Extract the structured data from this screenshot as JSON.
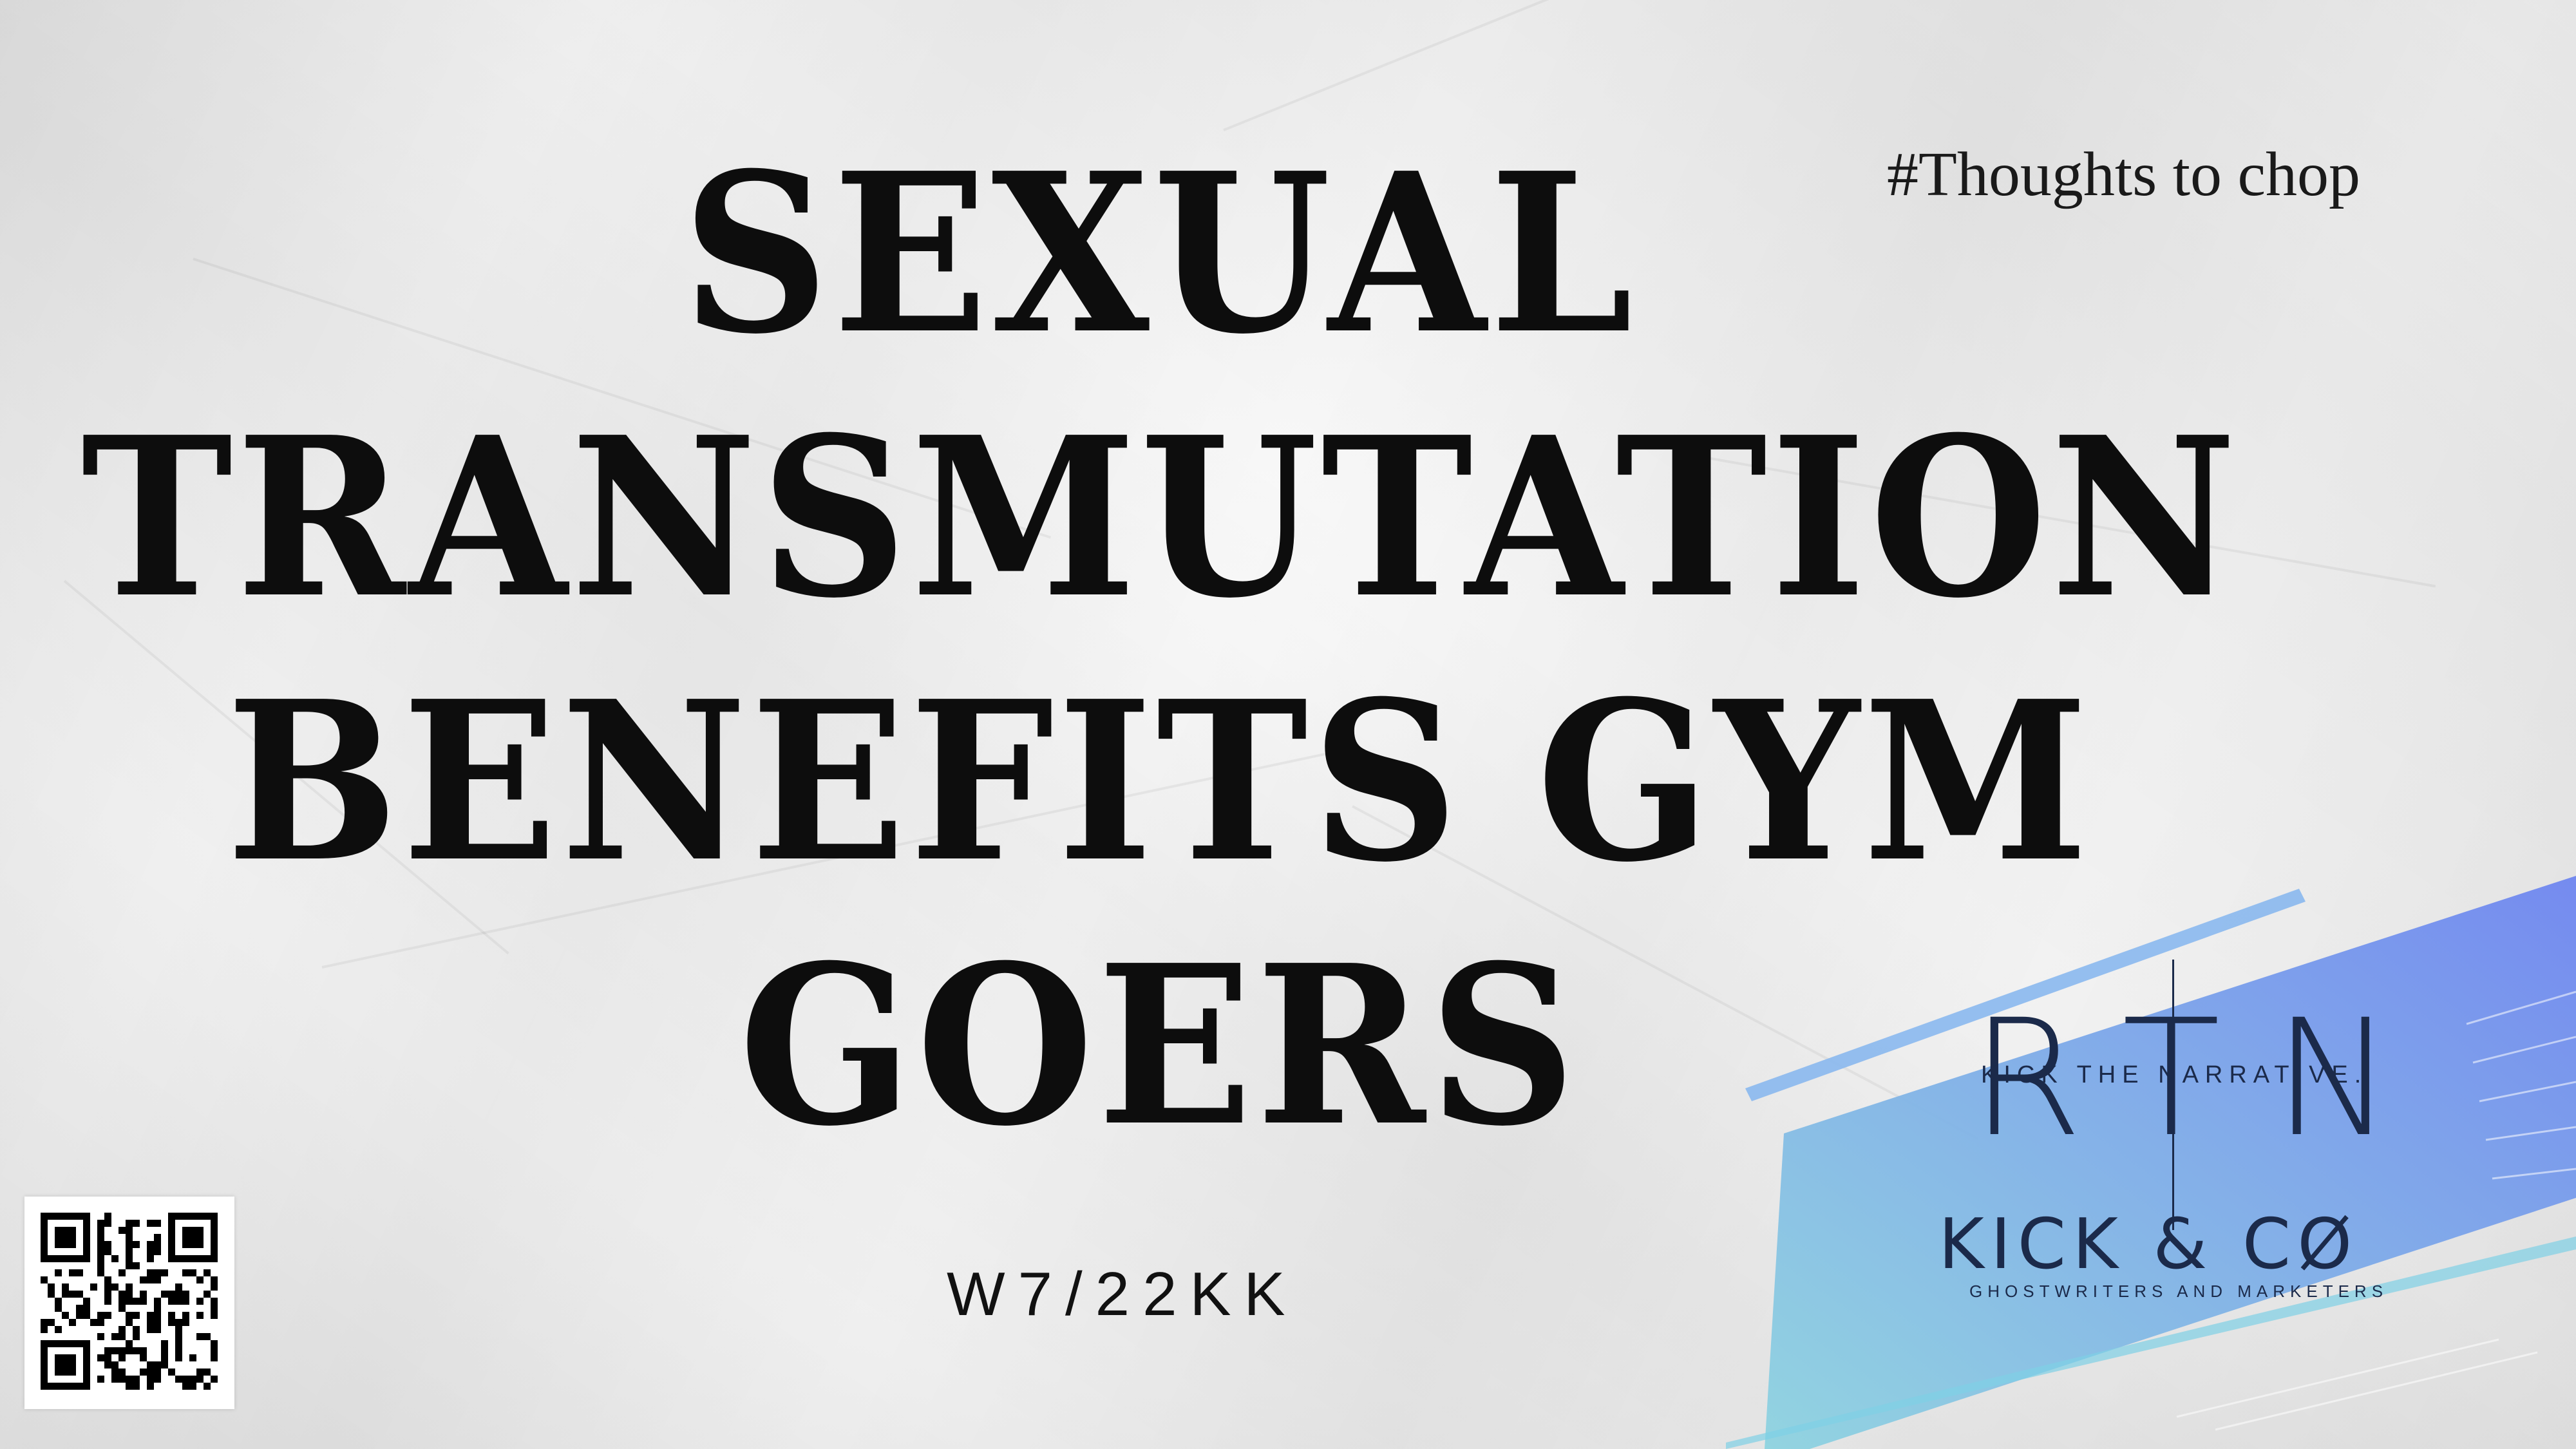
{
  "headline": {
    "line1": "SEXUAL",
    "line2": "TRANSMUTATION",
    "line3": "BENEFITS GYM",
    "line4": "GOERS"
  },
  "hashtag": "#Thoughts to chop",
  "code": "W7/22KK",
  "qr": {
    "icon": "qr-code-icon"
  },
  "logo": {
    "rtn_letters": [
      "R",
      "T",
      "N"
    ],
    "rtn_tagline": "KICK THE NARRATIVE.",
    "brand_name": "KICK & CØ",
    "brand_tagline": "GHOSTWRITERS AND MARKETERS",
    "colors": {
      "ink": "#1b2a4a",
      "band_light": "#8ed3e0",
      "band_dark": "#6f86f0"
    }
  }
}
